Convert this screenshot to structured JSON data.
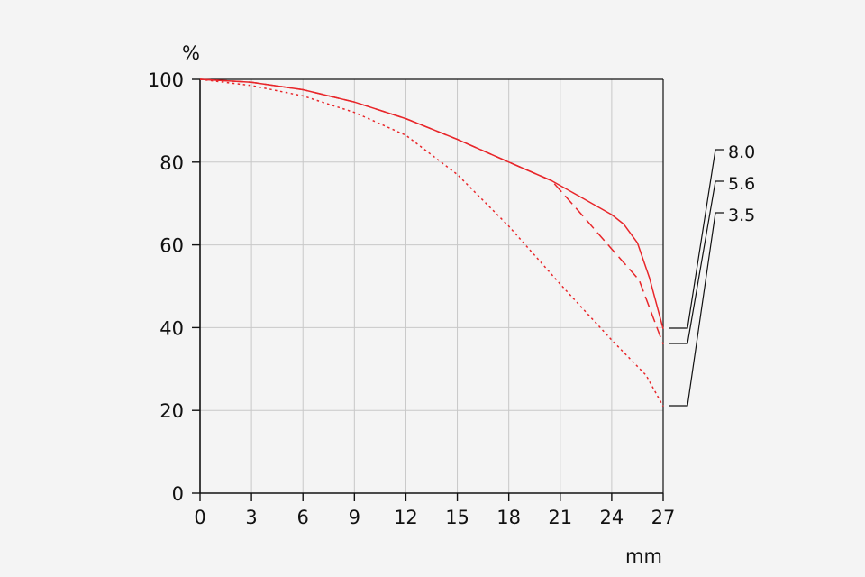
{
  "chart_data": {
    "type": "line",
    "xlabel": "mm",
    "ylabel": "%",
    "xlim": [
      0,
      27
    ],
    "ylim": [
      0,
      100
    ],
    "x_ticks": [
      0,
      3,
      6,
      9,
      12,
      15,
      18,
      21,
      24,
      27
    ],
    "y_ticks": [
      0,
      20,
      40,
      60,
      80,
      100
    ],
    "grid": true,
    "colors": {
      "series": "#e8262a",
      "grid": "#c8c8c8",
      "axis": "#111111",
      "leader": "#111111"
    },
    "series": [
      {
        "name": "8.0",
        "style": "solid",
        "x": [
          0,
          3,
          6,
          9,
          12,
          15,
          18,
          20.5,
          22,
          24,
          24.7,
          25.5,
          26.2,
          27
        ],
        "y": [
          100,
          99.3,
          97.5,
          94.5,
          90.5,
          85.5,
          80,
          75.5,
          72,
          67.3,
          65,
          60.5,
          52,
          39.7
        ]
      },
      {
        "name": "5.6",
        "style": "dashed",
        "x": [
          0,
          3,
          6,
          9,
          12,
          15,
          18,
          20.5,
          22,
          24,
          25.6,
          27
        ],
        "y": [
          100,
          99.3,
          97.5,
          94.5,
          90.5,
          85.5,
          80,
          75.5,
          68.5,
          59,
          51.5,
          36
        ]
      },
      {
        "name": "3.5",
        "style": "dotted",
        "x": [
          0,
          3,
          6,
          9,
          12,
          15,
          18,
          21,
          24,
          26,
          27
        ],
        "y": [
          100,
          98.5,
          96,
          92,
          86.5,
          77,
          64.5,
          50.5,
          37,
          28.5,
          21
        ]
      }
    ]
  }
}
